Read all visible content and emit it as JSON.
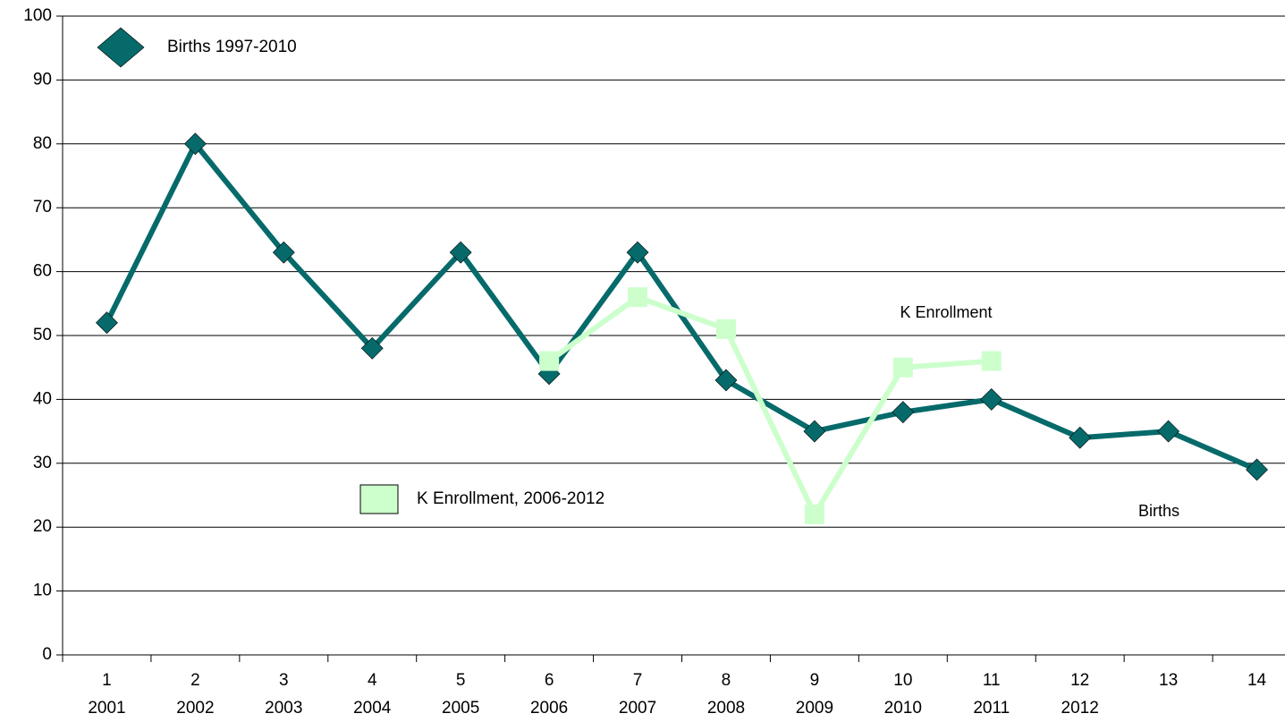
{
  "chart_data": {
    "type": "line",
    "categories": [
      "1",
      "2",
      "3",
      "4",
      "5",
      "6",
      "7",
      "8",
      "9",
      "10",
      "11",
      "12",
      "13",
      "14"
    ],
    "categories2": [
      "2001",
      "2002",
      "2003",
      "2004",
      "2005",
      "2006",
      "2007",
      "2008",
      "2009",
      "2010",
      "2011",
      "2012",
      null,
      null
    ],
    "series": [
      {
        "name": "Births 1997-2010",
        "color": "#066a6a",
        "marker": "diamond",
        "values": [
          52,
          80,
          63,
          48,
          63,
          44,
          63,
          43,
          35,
          38,
          40,
          34,
          35,
          29
        ]
      },
      {
        "name": "K Enrollment, 2006-2012",
        "color": "#ccffcc",
        "marker": "square",
        "values": [
          null,
          null,
          null,
          null,
          null,
          46,
          56,
          51,
          22,
          45,
          46,
          null,
          null,
          null
        ]
      }
    ],
    "annotations": [
      {
        "text": "K Enrollment"
      },
      {
        "text": "Births"
      }
    ],
    "ylim": [
      0,
      100
    ],
    "yticks": [
      0,
      10,
      20,
      30,
      40,
      50,
      60,
      70,
      80,
      90,
      100
    ],
    "grid": true
  }
}
